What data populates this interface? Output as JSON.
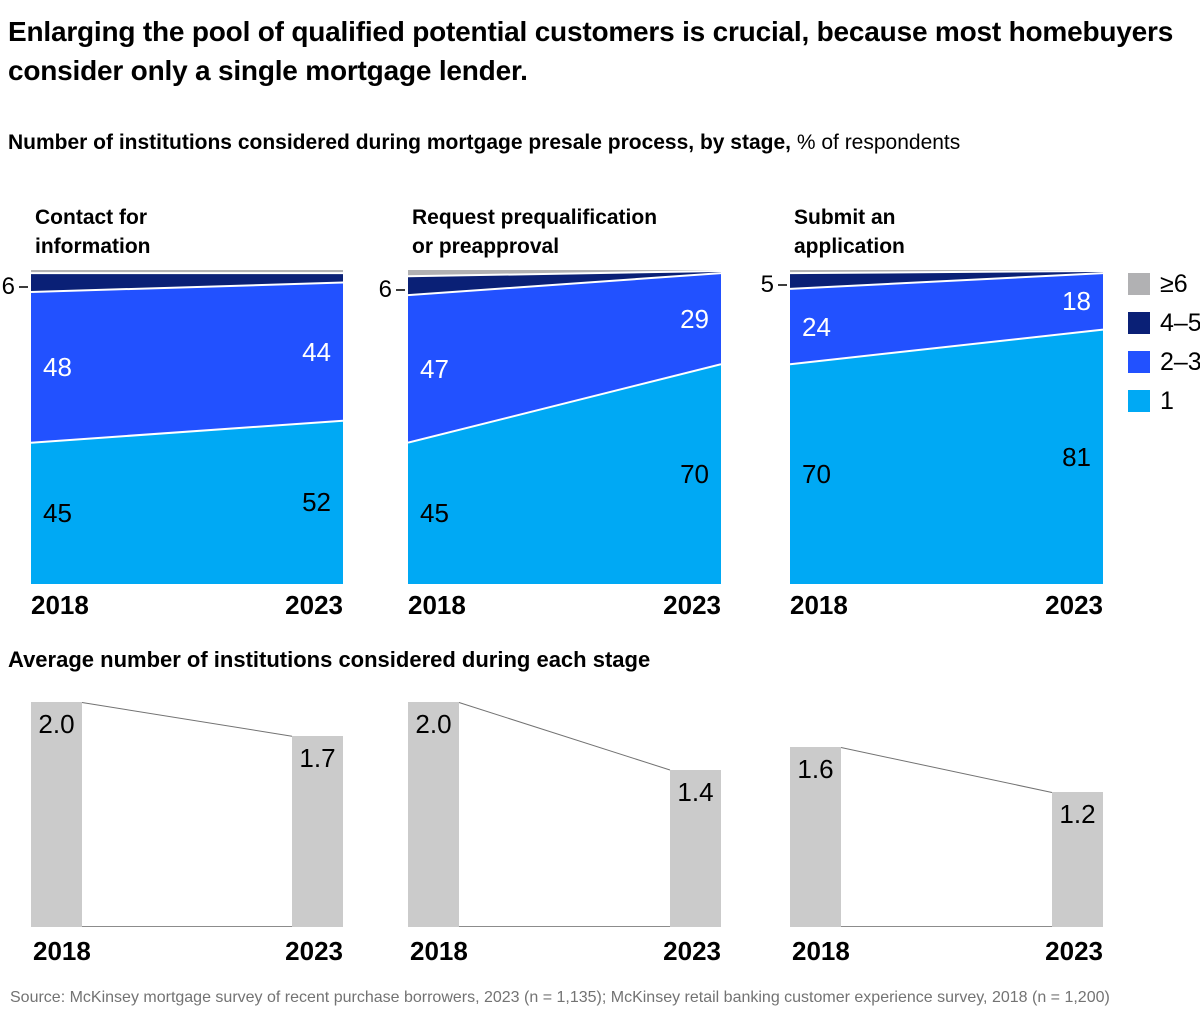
{
  "page": {
    "title": "Enlarging the pool of qualified potential customers is crucial, because most homebuyers consider only a single mortgage lender.",
    "subtitle_bold": "Number of institutions considered during mortgage presale process, by stage,",
    "subtitle_regular": " % of respondents",
    "average_section_title": "Average number of institutions considered during each stage",
    "source": "Source: McKinsey mortgage survey of recent purchase borrowers, 2023 (n = 1,135); McKinsey retail banking customer experience survey, 2018 (n = 1,200)"
  },
  "colors": {
    "cyan": "#00a9f4",
    "blue": "#2251ff",
    "navy": "#0a2076",
    "gray": "#b1b1b3",
    "bar_gray": "#cbcbcb"
  },
  "legend": [
    {
      "label": "≥6",
      "color": "gray"
    },
    {
      "label": "4–5",
      "color": "navy"
    },
    {
      "label": "2–3",
      "color": "blue"
    },
    {
      "label": "1",
      "color": "cyan"
    }
  ],
  "chart_data": [
    {
      "type": "area",
      "stacked": true,
      "title_lines": [
        "Contact for",
        "information"
      ],
      "x": [
        "2018",
        "2023"
      ],
      "ylim": [
        0,
        100
      ],
      "series": [
        {
          "name": "1",
          "color": "cyan",
          "values": [
            45,
            52
          ],
          "labels": [
            "45",
            "52"
          ]
        },
        {
          "name": "2–3",
          "color": "blue",
          "values": [
            48,
            44
          ],
          "labels": [
            "48",
            "44"
          ]
        },
        {
          "name": "4–5",
          "color": "navy",
          "values": [
            6,
            3
          ],
          "axis_label": "6"
        },
        {
          "name": "≥6",
          "color": "gray",
          "values": [
            1,
            1
          ]
        }
      ]
    },
    {
      "type": "area",
      "stacked": true,
      "title_lines": [
        "Request prequalification",
        "or preapproval"
      ],
      "x": [
        "2018",
        "2023"
      ],
      "ylim": [
        0,
        100
      ],
      "series": [
        {
          "name": "1",
          "color": "cyan",
          "values": [
            45,
            70
          ],
          "labels": [
            "45",
            "70"
          ]
        },
        {
          "name": "2–3",
          "color": "blue",
          "values": [
            47,
            29
          ],
          "labels": [
            "47",
            "29"
          ]
        },
        {
          "name": "4–5",
          "color": "navy",
          "values": [
            6,
            0.7
          ],
          "axis_label": "6"
        },
        {
          "name": "≥6",
          "color": "gray",
          "values": [
            2,
            0.3
          ]
        }
      ]
    },
    {
      "type": "area",
      "stacked": true,
      "title_lines": [
        "Submit an",
        "application"
      ],
      "x": [
        "2018",
        "2023"
      ],
      "ylim": [
        0,
        100
      ],
      "series": [
        {
          "name": "1",
          "color": "cyan",
          "values": [
            70,
            81
          ],
          "labels": [
            "70",
            "81"
          ]
        },
        {
          "name": "2–3",
          "color": "blue",
          "values": [
            24,
            18
          ],
          "labels": [
            "24",
            "18"
          ]
        },
        {
          "name": "4–5",
          "color": "navy",
          "values": [
            5,
            0.7
          ],
          "axis_label": "5"
        },
        {
          "name": "≥6",
          "color": "gray",
          "values": [
            1,
            0.3
          ]
        }
      ]
    },
    {
      "type": "bar",
      "stage": "Contact for information",
      "x": [
        "2018",
        "2023"
      ],
      "values": [
        2.0,
        1.7
      ],
      "labels": [
        "2.0",
        "1.7"
      ]
    },
    {
      "type": "bar",
      "stage": "Request prequalification or preapproval",
      "x": [
        "2018",
        "2023"
      ],
      "values": [
        2.0,
        1.4
      ],
      "labels": [
        "2.0",
        "1.4"
      ]
    },
    {
      "type": "bar",
      "stage": "Submit an application",
      "x": [
        "2018",
        "2023"
      ],
      "values": [
        1.6,
        1.2
      ],
      "labels": [
        "1.6",
        "1.2"
      ]
    }
  ]
}
